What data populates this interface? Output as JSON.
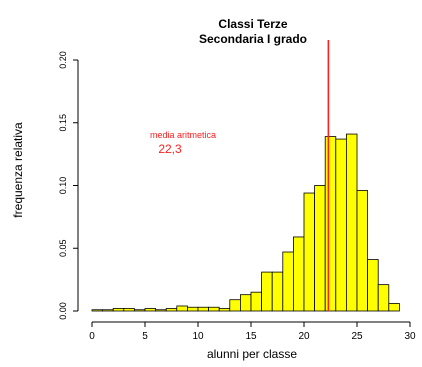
{
  "chart_data": {
    "type": "bar",
    "title": [
      "Classi Terze",
      "Secondaria I grado"
    ],
    "xlabel": "alunni per classe",
    "ylabel": "frequenza relativa",
    "xlim": [
      0,
      30
    ],
    "ylim": [
      0,
      0.2
    ],
    "x_ticks": [
      "0",
      "5",
      "10",
      "15",
      "20",
      "25",
      "30"
    ],
    "x_tick_values": [
      0,
      5,
      10,
      15,
      20,
      25,
      30
    ],
    "y_ticks": [
      "0.00",
      "0.05",
      "0.10",
      "0.15",
      "0.20"
    ],
    "y_tick_values": [
      0,
      0.05,
      0.1,
      0.15,
      0.2
    ],
    "bin_width": 1,
    "bins": [
      {
        "start": 0,
        "value": 0.001
      },
      {
        "start": 1,
        "value": 0.001
      },
      {
        "start": 2,
        "value": 0.002
      },
      {
        "start": 3,
        "value": 0.002
      },
      {
        "start": 4,
        "value": 0.001
      },
      {
        "start": 5,
        "value": 0.002
      },
      {
        "start": 6,
        "value": 0.001
      },
      {
        "start": 7,
        "value": 0.002
      },
      {
        "start": 8,
        "value": 0.004
      },
      {
        "start": 9,
        "value": 0.003
      },
      {
        "start": 10,
        "value": 0.003
      },
      {
        "start": 11,
        "value": 0.003
      },
      {
        "start": 12,
        "value": 0.002
      },
      {
        "start": 13,
        "value": 0.009
      },
      {
        "start": 14,
        "value": 0.013
      },
      {
        "start": 15,
        "value": 0.015
      },
      {
        "start": 16,
        "value": 0.031
      },
      {
        "start": 17,
        "value": 0.031
      },
      {
        "start": 18,
        "value": 0.047
      },
      {
        "start": 19,
        "value": 0.059
      },
      {
        "start": 20,
        "value": 0.094
      },
      {
        "start": 21,
        "value": 0.1
      },
      {
        "start": 22,
        "value": 0.139
      },
      {
        "start": 23,
        "value": 0.137
      },
      {
        "start": 24,
        "value": 0.141
      },
      {
        "start": 25,
        "value": 0.096
      },
      {
        "start": 26,
        "value": 0.041
      },
      {
        "start": 27,
        "value": 0.021
      },
      {
        "start": 28,
        "value": 0.006
      }
    ],
    "mean": 22.3,
    "annotation": {
      "label": "media aritmetica",
      "value": "22,3"
    },
    "bar_color": "#ffff00",
    "bar_border_color": "#000000",
    "mean_line_color": "#ff2020",
    "grid": false,
    "legend": "none"
  }
}
